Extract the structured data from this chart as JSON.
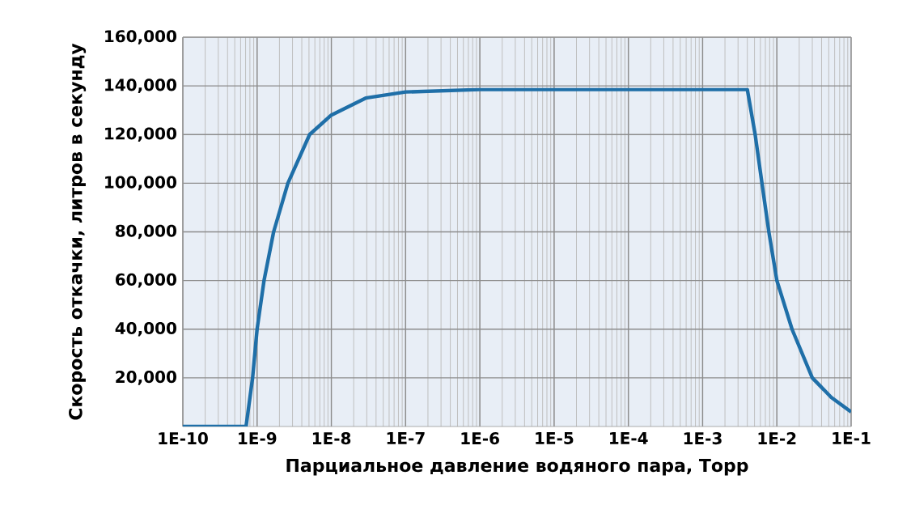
{
  "chart_data": {
    "type": "line",
    "xlabel": "Парциальное давление водяного пара, Торр",
    "ylabel": "Скорость откачки, литров в секунду",
    "log": "x",
    "xlim": [
      1e-10,
      0.1
    ],
    "xticks": [
      {
        "value": 1e-10,
        "label": "1E-10"
      },
      {
        "value": 1e-09,
        "label": "1E-9"
      },
      {
        "value": 1e-08,
        "label": "1E-8"
      },
      {
        "value": 1e-07,
        "label": "1E-7"
      },
      {
        "value": 1e-06,
        "label": "1E-6"
      },
      {
        "value": 1e-05,
        "label": "1E-5"
      },
      {
        "value": 0.0001,
        "label": "1E-4"
      },
      {
        "value": 0.001,
        "label": "1E-3"
      },
      {
        "value": 0.01,
        "label": "1E-2"
      },
      {
        "value": 0.1,
        "label": "1E-1"
      }
    ],
    "ylim": [
      0,
      160000
    ],
    "yticks": [
      {
        "value": 20000,
        "label": "20,000"
      },
      {
        "value": 40000,
        "label": "40,000"
      },
      {
        "value": 60000,
        "label": "60,000"
      },
      {
        "value": 80000,
        "label": "80,000"
      },
      {
        "value": 100000,
        "label": "100,000"
      },
      {
        "value": 120000,
        "label": "120,000"
      },
      {
        "value": 140000,
        "label": "140,000"
      },
      {
        "value": 160000,
        "label": "160,000"
      }
    ],
    "grid": true,
    "marker": "none",
    "line_style": "solid",
    "series": [
      {
        "color": "#1f6fa8",
        "x": [
          1e-10,
          7.1e-10,
          8.7e-10,
          1e-09,
          1.24e-09,
          1.67e-09,
          2.6e-09,
          5.1e-09,
          1e-08,
          2.9e-08,
          1e-07,
          1e-06,
          0.004,
          0.0051,
          0.0063,
          0.0078,
          0.01,
          0.016,
          0.03,
          0.054,
          0.1
        ],
        "values": [
          0,
          0,
          20000,
          40000,
          60000,
          80000,
          100000,
          120000,
          128000,
          135000,
          137500,
          138500,
          138500,
          120000,
          100000,
          80000,
          60000,
          40000,
          20000,
          12000,
          6000
        ]
      }
    ]
  }
}
